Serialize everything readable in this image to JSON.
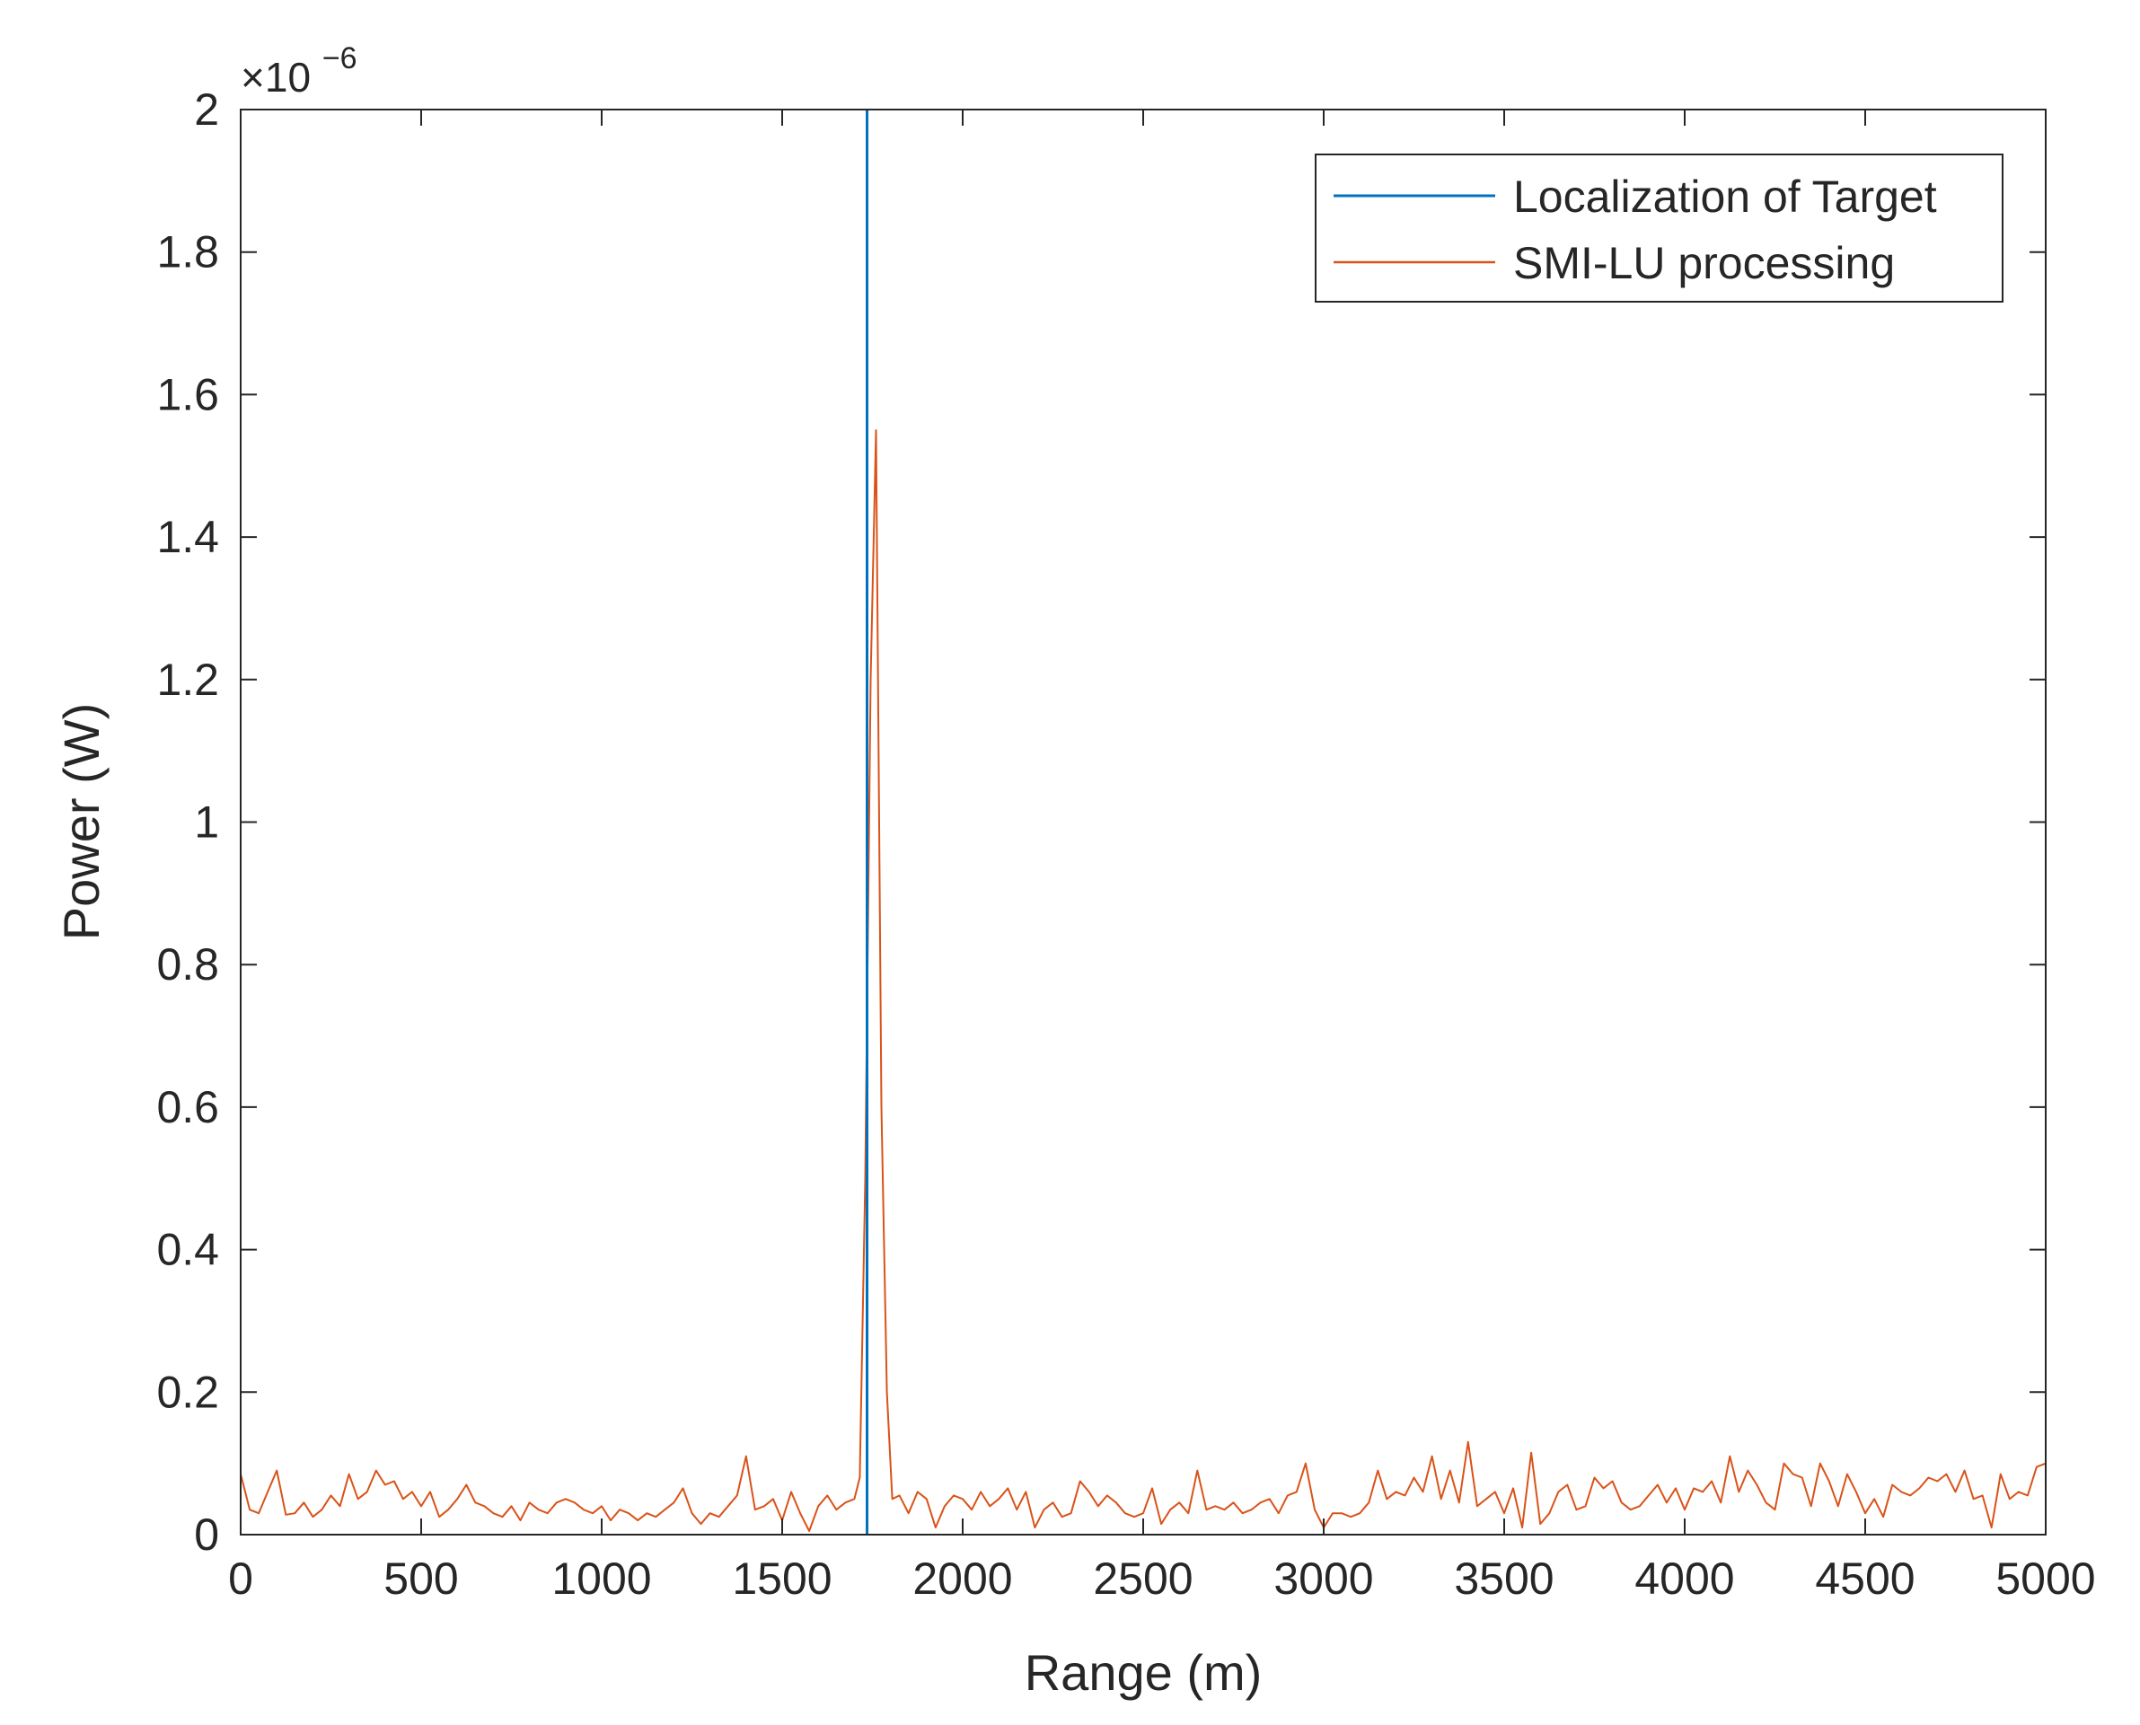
{
  "chart_data": {
    "type": "line",
    "title": "",
    "xlabel": "Range (m)",
    "ylabel": "Power (W)",
    "y_exponent_base": "×10",
    "y_exponent_power": "−6",
    "xlim": [
      0,
      5000
    ],
    "ylim": [
      0,
      2
    ],
    "x_ticks": [
      0,
      500,
      1000,
      1500,
      2000,
      2500,
      3000,
      3500,
      4000,
      4500,
      5000
    ],
    "x_tick_labels": [
      "0",
      "500",
      "1000",
      "1500",
      "2000",
      "2500",
      "3000",
      "3500",
      "4000",
      "4500",
      "5000"
    ],
    "y_ticks": [
      0,
      0.2,
      0.4,
      0.6,
      0.8,
      1,
      1.2,
      1.4,
      1.6,
      1.8,
      2
    ],
    "y_tick_labels": [
      "0",
      "0.2",
      "0.4",
      "0.6",
      "0.8",
      "1",
      "1.2",
      "1.4",
      "1.6",
      "1.8",
      "2"
    ],
    "grid": false,
    "legend_position": "top-right",
    "series": [
      {
        "name": "Localization of Target",
        "color": "#0072BD",
        "x": [
          1735,
          1735
        ],
        "y": [
          0,
          2
        ]
      },
      {
        "name": "SMI-LU processing",
        "color": "#D95319",
        "x": [
          0,
          25,
          50,
          75,
          100,
          125,
          150,
          175,
          200,
          225,
          250,
          275,
          300,
          325,
          350,
          375,
          400,
          425,
          450,
          475,
          500,
          525,
          550,
          575,
          600,
          625,
          650,
          675,
          700,
          725,
          750,
          775,
          800,
          825,
          850,
          875,
          900,
          925,
          950,
          975,
          1000,
          1025,
          1050,
          1075,
          1100,
          1125,
          1150,
          1175,
          1200,
          1225,
          1250,
          1275,
          1300,
          1325,
          1350,
          1375,
          1400,
          1425,
          1450,
          1475,
          1500,
          1525,
          1550,
          1575,
          1600,
          1625,
          1650,
          1675,
          1700,
          1715,
          1730,
          1745,
          1760,
          1775,
          1790,
          1805,
          1825,
          1850,
          1875,
          1900,
          1925,
          1950,
          1975,
          2000,
          2025,
          2050,
          2075,
          2100,
          2125,
          2150,
          2175,
          2200,
          2225,
          2250,
          2275,
          2300,
          2325,
          2350,
          2375,
          2400,
          2425,
          2450,
          2475,
          2500,
          2525,
          2550,
          2575,
          2600,
          2625,
          2650,
          2675,
          2700,
          2725,
          2750,
          2775,
          2800,
          2825,
          2850,
          2875,
          2900,
          2925,
          2950,
          2975,
          3000,
          3025,
          3050,
          3075,
          3100,
          3125,
          3150,
          3175,
          3200,
          3225,
          3250,
          3275,
          3300,
          3325,
          3350,
          3375,
          3400,
          3425,
          3450,
          3475,
          3500,
          3525,
          3550,
          3575,
          3600,
          3625,
          3650,
          3675,
          3700,
          3725,
          3750,
          3775,
          3800,
          3825,
          3850,
          3875,
          3900,
          3925,
          3950,
          3975,
          4000,
          4025,
          4050,
          4075,
          4100,
          4125,
          4150,
          4175,
          4200,
          4225,
          4250,
          4275,
          4300,
          4325,
          4350,
          4375,
          4400,
          4425,
          4450,
          4475,
          4500,
          4525,
          4550,
          4575,
          4600,
          4625,
          4650,
          4675,
          4700,
          4725,
          4750,
          4775,
          4800,
          4825,
          4850,
          4875,
          4900,
          4925,
          4950,
          4975,
          5000
        ],
        "y": [
          0.085,
          0.035,
          0.03,
          0.06,
          0.09,
          0.028,
          0.03,
          0.045,
          0.025,
          0.035,
          0.055,
          0.04,
          0.085,
          0.05,
          0.06,
          0.09,
          0.07,
          0.075,
          0.05,
          0.06,
          0.04,
          0.06,
          0.025,
          0.035,
          0.05,
          0.07,
          0.045,
          0.04,
          0.03,
          0.025,
          0.04,
          0.02,
          0.045,
          0.035,
          0.03,
          0.045,
          0.05,
          0.045,
          0.035,
          0.03,
          0.04,
          0.02,
          0.035,
          0.03,
          0.02,
          0.03,
          0.025,
          0.035,
          0.045,
          0.065,
          0.03,
          0.015,
          0.03,
          0.025,
          0.04,
          0.055,
          0.11,
          0.035,
          0.04,
          0.05,
          0.02,
          0.06,
          0.03,
          0.005,
          0.04,
          0.055,
          0.035,
          0.045,
          0.05,
          0.08,
          0.5,
          1.2,
          1.55,
          0.6,
          0.2,
          0.05,
          0.055,
          0.03,
          0.06,
          0.05,
          0.01,
          0.04,
          0.055,
          0.05,
          0.035,
          0.06,
          0.04,
          0.05,
          0.065,
          0.035,
          0.06,
          0.01,
          0.035,
          0.045,
          0.025,
          0.03,
          0.075,
          0.06,
          0.04,
          0.055,
          0.045,
          0.03,
          0.025,
          0.03,
          0.065,
          0.015,
          0.035,
          0.045,
          0.03,
          0.09,
          0.035,
          0.04,
          0.035,
          0.045,
          0.03,
          0.035,
          0.045,
          0.05,
          0.03,
          0.055,
          0.06,
          0.1,
          0.035,
          0.01,
          0.03,
          0.03,
          0.025,
          0.03,
          0.045,
          0.09,
          0.05,
          0.06,
          0.055,
          0.08,
          0.06,
          0.11,
          0.05,
          0.09,
          0.045,
          0.13,
          0.04,
          0.05,
          0.06,
          0.03,
          0.065,
          0.01,
          0.115,
          0.015,
          0.03,
          0.06,
          0.07,
          0.035,
          0.04,
          0.08,
          0.065,
          0.075,
          0.045,
          0.035,
          0.04,
          0.055,
          0.07,
          0.045,
          0.065,
          0.035,
          0.065,
          0.06,
          0.075,
          0.045,
          0.11,
          0.06,
          0.09,
          0.07,
          0.045,
          0.035,
          0.1,
          0.085,
          0.08,
          0.04,
          0.1,
          0.075,
          0.04,
          0.085,
          0.06,
          0.03,
          0.05,
          0.025,
          0.07,
          0.06,
          0.055,
          0.065,
          0.08,
          0.075,
          0.085,
          0.06,
          0.09,
          0.05,
          0.055,
          0.01,
          0.085,
          0.05,
          0.06,
          0.055,
          0.095,
          0.1
        ]
      }
    ]
  }
}
